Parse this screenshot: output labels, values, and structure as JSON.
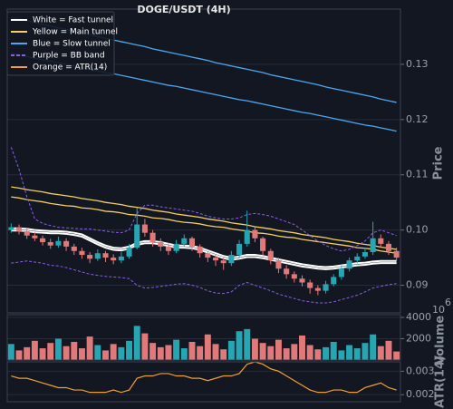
{
  "chart_data": [
    {
      "type": "candlestick",
      "title": "DOGE/USDT (4H)",
      "y_label": "Price",
      "ylim": [
        0.085,
        0.14
      ],
      "yticks": [
        0.09,
        {
          "value": 0.1,
          "label": "0.10"
        },
        0.11,
        0.12,
        0.13
      ],
      "grid": true,
      "up_color": "#26a6b3",
      "down_color": "#e07a7a",
      "open": [
        0.1,
        0.1005,
        0.0998,
        0.099,
        0.0985,
        0.0978,
        0.0972,
        0.098,
        0.097,
        0.0962,
        0.0955,
        0.0948,
        0.0958,
        0.095,
        0.0945,
        0.0952,
        0.0968,
        0.101,
        0.0995,
        0.0978,
        0.097,
        0.0962,
        0.0975,
        0.0985,
        0.097,
        0.0958,
        0.095,
        0.0945,
        0.094,
        0.0955,
        0.0975,
        0.1,
        0.0985,
        0.0962,
        0.0945,
        0.093,
        0.092,
        0.0912,
        0.0905,
        0.0895,
        0.089,
        0.0902,
        0.0915,
        0.093,
        0.0945,
        0.0952,
        0.096,
        0.0985,
        0.0975,
        0.0962
      ],
      "high": [
        0.1012,
        0.101,
        0.1003,
        0.0996,
        0.099,
        0.0984,
        0.0988,
        0.0985,
        0.0975,
        0.0968,
        0.096,
        0.0965,
        0.0962,
        0.0956,
        0.096,
        0.0975,
        0.104,
        0.102,
        0.1,
        0.0985,
        0.0976,
        0.0982,
        0.0992,
        0.0988,
        0.0974,
        0.0962,
        0.0955,
        0.095,
        0.0962,
        0.0982,
        0.1035,
        0.1005,
        0.0988,
        0.0966,
        0.095,
        0.0936,
        0.0925,
        0.0918,
        0.091,
        0.09,
        0.0908,
        0.092,
        0.0936,
        0.095,
        0.0958,
        0.0968,
        0.1015,
        0.0992,
        0.098,
        0.0968
      ],
      "low": [
        0.0995,
        0.0992,
        0.0984,
        0.098,
        0.0972,
        0.0966,
        0.0968,
        0.0962,
        0.0955,
        0.0948,
        0.094,
        0.0944,
        0.0942,
        0.0938,
        0.094,
        0.0948,
        0.0965,
        0.0988,
        0.097,
        0.0962,
        0.0955,
        0.0958,
        0.097,
        0.0962,
        0.095,
        0.0942,
        0.0935,
        0.0928,
        0.0935,
        0.095,
        0.097,
        0.0978,
        0.0955,
        0.0938,
        0.0922,
        0.0912,
        0.0905,
        0.0898,
        0.0885,
        0.0882,
        0.0885,
        0.0898,
        0.091,
        0.0925,
        0.094,
        0.0948,
        0.0955,
        0.0968,
        0.0955,
        0.0945
      ],
      "close": [
        0.1005,
        0.0998,
        0.099,
        0.0985,
        0.0978,
        0.0972,
        0.098,
        0.097,
        0.0962,
        0.0955,
        0.0948,
        0.0958,
        0.095,
        0.0945,
        0.0952,
        0.0968,
        0.101,
        0.0995,
        0.0978,
        0.097,
        0.0962,
        0.0975,
        0.0985,
        0.097,
        0.0958,
        0.095,
        0.0945,
        0.094,
        0.0955,
        0.0975,
        0.1,
        0.0985,
        0.0962,
        0.0945,
        0.093,
        0.092,
        0.0912,
        0.0905,
        0.0895,
        0.089,
        0.0902,
        0.0915,
        0.093,
        0.0945,
        0.0952,
        0.096,
        0.0985,
        0.0975,
        0.0962,
        0.095
      ],
      "series": [
        {
          "name": "White = Fast tunnel",
          "color": "#ffffff",
          "width": 2,
          "upper": [
            0.1003,
            0.1003,
            0.1002,
            0.1,
            0.0999,
            0.0998,
            0.0998,
            0.0997,
            0.0995,
            0.0992,
            0.0985,
            0.0978,
            0.0972,
            0.0968,
            0.0967,
            0.097,
            0.0977,
            0.098,
            0.098,
            0.0978,
            0.0975,
            0.0972,
            0.0972,
            0.0971,
            0.0968,
            0.0963,
            0.0958,
            0.0953,
            0.095,
            0.0952,
            0.0955,
            0.0955,
            0.0953,
            0.095,
            0.0947,
            0.0944,
            0.0941,
            0.0938,
            0.0936,
            0.0934,
            0.0933,
            0.0934,
            0.0936,
            0.0938,
            0.094,
            0.0941,
            0.0943,
            0.0944,
            0.0944,
            0.0944
          ],
          "lower": [
            0.0999,
            0.0999,
            0.0998,
            0.0996,
            0.0995,
            0.0994,
            0.0994,
            0.0993,
            0.0991,
            0.0988,
            0.0981,
            0.0974,
            0.0968,
            0.0964,
            0.0963,
            0.0966,
            0.0973,
            0.0976,
            0.0976,
            0.0974,
            0.0971,
            0.0968,
            0.0968,
            0.0967,
            0.0964,
            0.0959,
            0.0954,
            0.0949,
            0.0946,
            0.0948,
            0.0951,
            0.0951,
            0.0949,
            0.0946,
            0.0943,
            0.094,
            0.0937,
            0.0934,
            0.0932,
            0.093,
            0.0929,
            0.093,
            0.0932,
            0.0934,
            0.0936,
            0.0937,
            0.0939,
            0.094,
            0.094,
            0.094
          ]
        },
        {
          "name": "Yellow = Main tunnel",
          "color": "#f5d060",
          "width": 1.3,
          "upper": [
            0.1078,
            0.1076,
            0.1073,
            0.1071,
            0.1069,
            0.1066,
            0.1064,
            0.1062,
            0.106,
            0.1057,
            0.1055,
            0.1053,
            0.105,
            0.1048,
            0.1046,
            0.1043,
            0.1041,
            0.1039,
            0.1036,
            0.1034,
            0.1032,
            0.1029,
            0.1027,
            0.1025,
            0.1023,
            0.102,
            0.1018,
            0.1016,
            0.1013,
            0.1011,
            0.1009,
            0.1006,
            0.1004,
            0.1002,
            0.0999,
            0.0997,
            0.0995,
            0.0992,
            0.099,
            0.0988,
            0.0986,
            0.0983,
            0.0981,
            0.0979,
            0.0976,
            0.0974,
            0.0972,
            0.0969,
            0.0967,
            0.0965
          ],
          "lower": [
            0.106,
            0.1058,
            0.1055,
            0.1053,
            0.1051,
            0.1048,
            0.1046,
            0.1044,
            0.1043,
            0.104,
            0.1039,
            0.1037,
            0.1034,
            0.1033,
            0.1031,
            0.1028,
            0.1027,
            0.1025,
            0.1022,
            0.1021,
            0.1019,
            0.1016,
            0.1014,
            0.1013,
            0.1011,
            0.1008,
            0.1006,
            0.1005,
            0.1002,
            0.1,
            0.0998,
            0.0995,
            0.0994,
            0.0992,
            0.0989,
            0.0987,
            0.0986,
            0.0983,
            0.0981,
            0.0979,
            0.0977,
            0.0975,
            0.0973,
            0.0971,
            0.0968,
            0.0967,
            0.0965,
            0.0962,
            0.096,
            0.0958
          ]
        },
        {
          "name": "Blue = Slow tunnel",
          "color": "#4aa8f0",
          "width": 1.3,
          "upper": [
            0.1385,
            0.1382,
            0.1379,
            0.1376,
            0.1372,
            0.1369,
            0.1366,
            0.1363,
            0.136,
            0.1357,
            0.1354,
            0.135,
            0.1347,
            0.1344,
            0.1341,
            0.1338,
            0.1335,
            0.1332,
            0.1328,
            0.1325,
            0.1322,
            0.1319,
            0.1316,
            0.1313,
            0.131,
            0.1307,
            0.1303,
            0.13,
            0.1297,
            0.1294,
            0.1291,
            0.1288,
            0.1285,
            0.1281,
            0.1278,
            0.1275,
            0.1272,
            0.1269,
            0.1266,
            0.1263,
            0.1259,
            0.1256,
            0.1253,
            0.125,
            0.1247,
            0.1244,
            0.1241,
            0.1237,
            0.1234,
            0.1231
          ],
          "lower": [
            0.132,
            0.1317,
            0.1314,
            0.1311,
            0.1308,
            0.1306,
            0.1303,
            0.13,
            0.1297,
            0.1294,
            0.1291,
            0.1288,
            0.1285,
            0.1283,
            0.128,
            0.1277,
            0.1274,
            0.1271,
            0.1268,
            0.1265,
            0.1262,
            0.126,
            0.1257,
            0.1254,
            0.1251,
            0.1248,
            0.1245,
            0.1242,
            0.1239,
            0.1236,
            0.1234,
            0.1231,
            0.1228,
            0.1225,
            0.1222,
            0.1219,
            0.1216,
            0.1213,
            0.1211,
            0.1208,
            0.1205,
            0.1202,
            0.1199,
            0.1196,
            0.1193,
            0.119,
            0.1188,
            0.1185,
            0.1182,
            0.1179
          ]
        },
        {
          "name": "Purple = BB band",
          "color": "#8a5cf0",
          "width": 1,
          "dashed": true,
          "upper": [
            0.115,
            0.111,
            0.106,
            0.102,
            0.1012,
            0.1008,
            0.1005,
            0.1004,
            0.1003,
            0.1002,
            0.1002,
            0.1,
            0.0998,
            0.0996,
            0.0995,
            0.1,
            0.103,
            0.1045,
            0.1045,
            0.1042,
            0.104,
            0.1038,
            0.1036,
            0.1034,
            0.103,
            0.1025,
            0.1022,
            0.102,
            0.102,
            0.1022,
            0.1028,
            0.103,
            0.1028,
            0.1025,
            0.102,
            0.1015,
            0.101,
            0.1,
            0.099,
            0.098,
            0.0972,
            0.0966,
            0.0962,
            0.0965,
            0.0972,
            0.098,
            0.0995,
            0.1,
            0.0995,
            0.099
          ],
          "lower": [
            0.094,
            0.0942,
            0.0944,
            0.0942,
            0.094,
            0.0936,
            0.0935,
            0.0932,
            0.0928,
            0.0924,
            0.092,
            0.0918,
            0.0916,
            0.0915,
            0.0914,
            0.0912,
            0.09,
            0.0895,
            0.0896,
            0.0898,
            0.09,
            0.0902,
            0.0903,
            0.09,
            0.0896,
            0.089,
            0.0886,
            0.0885,
            0.0888,
            0.09,
            0.0905,
            0.09,
            0.0895,
            0.089,
            0.0884,
            0.088,
            0.0876,
            0.0872,
            0.087,
            0.0868,
            0.0868,
            0.087,
            0.0874,
            0.0878,
            0.0882,
            0.0888,
            0.0895,
            0.0898,
            0.0901,
            0.0903
          ]
        }
      ]
    },
    {
      "type": "bar",
      "y_label": "Volume",
      "y_offset_base": "10",
      "y_offset_exponent": "6",
      "ylim": [
        0,
        4250
      ],
      "yticks": [
        2000,
        4000
      ],
      "grid": true,
      "values": [
        1500,
        900,
        1200,
        1800,
        1100,
        1600,
        2000,
        1300,
        1700,
        1100,
        2200,
        1400,
        900,
        1500,
        1200,
        1800,
        3200,
        2500,
        1600,
        1200,
        1400,
        1900,
        1100,
        1700,
        1300,
        2400,
        1500,
        1000,
        1800,
        2700,
        2900,
        2000,
        1600,
        1300,
        1900,
        1100,
        1500,
        2300,
        1400,
        1000,
        1200,
        1700,
        900,
        1400,
        1100,
        1600,
        2400,
        1300,
        1800,
        800
      ]
    },
    {
      "type": "line",
      "y_label": "ATR(14)",
      "ylim": [
        0.0017,
        0.0034
      ],
      "yticks": [
        0.002,
        0.003
      ],
      "grid": true,
      "series": [
        {
          "name": "Orange = ATR(14)",
          "color": "#f0a030",
          "values": [
            0.0028,
            0.0027,
            0.0027,
            0.0026,
            0.0025,
            0.0024,
            0.0023,
            0.0023,
            0.0022,
            0.0022,
            0.0021,
            0.0021,
            0.0021,
            0.0022,
            0.0021,
            0.0022,
            0.0027,
            0.0028,
            0.0028,
            0.0029,
            0.0029,
            0.0028,
            0.0028,
            0.0027,
            0.0027,
            0.0026,
            0.0027,
            0.0028,
            0.0028,
            0.0029,
            0.0033,
            0.0034,
            0.0033,
            0.0031,
            0.003,
            0.0028,
            0.0026,
            0.0024,
            0.0022,
            0.0021,
            0.0021,
            0.0022,
            0.0022,
            0.0021,
            0.0021,
            0.0023,
            0.0024,
            0.0025,
            0.0023,
            0.0022
          ]
        }
      ]
    }
  ]
}
